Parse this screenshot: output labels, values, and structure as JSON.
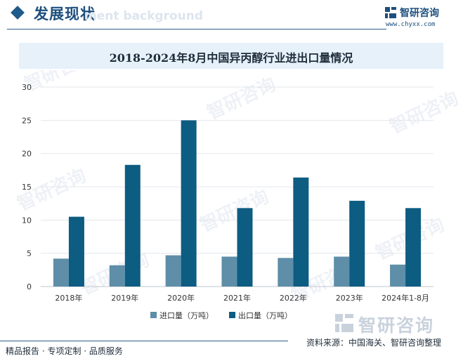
{
  "header": {
    "section_title": "发展现状",
    "ghost_text": "ment background",
    "logo_name": "智研咨询",
    "logo_url": "www.chyxx.com"
  },
  "chart_data": {
    "type": "bar",
    "title": "2018-2024年8月中国异丙醇行业进出口量情况",
    "categories": [
      "2018年",
      "2019年",
      "2020年",
      "2021年",
      "2022年",
      "2023年",
      "2024年1-8月"
    ],
    "series": [
      {
        "name": "进口量（万吨）",
        "color": "#5e8ea8",
        "values": [
          4.2,
          3.2,
          4.7,
          4.5,
          4.3,
          4.5,
          3.3
        ]
      },
      {
        "name": "出口量（万吨）",
        "color": "#0d5c82",
        "values": [
          10.5,
          18.3,
          25.0,
          11.8,
          16.4,
          12.9,
          11.8
        ]
      }
    ],
    "y_ticks": [
      0,
      5,
      10,
      15,
      20,
      25,
      30
    ],
    "ylim": [
      0,
      30
    ],
    "xlabel": "",
    "ylabel": "",
    "grid": true,
    "legend_position": "bottom"
  },
  "watermark": {
    "text": "智研咨询"
  },
  "footer": {
    "left": "精品报告 · 专项定制 · 品质服务",
    "source": "资料来源：中国海关、智研咨询整理"
  }
}
